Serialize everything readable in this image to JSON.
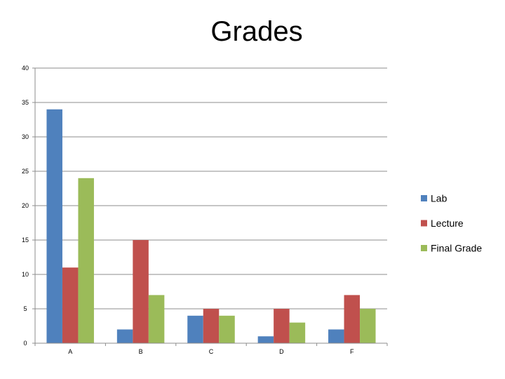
{
  "chart_data": {
    "type": "bar",
    "title": "Grades",
    "xlabel": "",
    "ylabel": "",
    "categories": [
      "A",
      "B",
      "C",
      "D",
      "F"
    ],
    "series": [
      {
        "name": "Lab",
        "values": [
          34,
          2,
          4,
          1,
          2
        ],
        "color": "#4f81bd"
      },
      {
        "name": "Lecture",
        "values": [
          11,
          15,
          5,
          5,
          7
        ],
        "color": "#c0504d"
      },
      {
        "name": "Final Grade",
        "values": [
          24,
          7,
          4,
          3,
          5
        ],
        "color": "#9bbb59"
      }
    ],
    "ylim": [
      0,
      40
    ],
    "yticks": [
      0,
      5,
      10,
      15,
      20,
      25,
      30,
      35,
      40
    ],
    "grid": true,
    "legend_position": "right"
  }
}
